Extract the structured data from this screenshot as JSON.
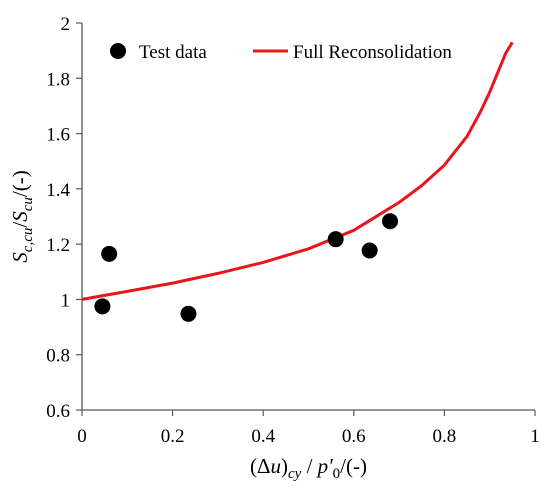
{
  "chart_data": {
    "type": "scatter",
    "title": "",
    "xlabel": {
      "base": "(Δ",
      "var": "u",
      "sub": "cy",
      "rest": " / ",
      "var2": "p'",
      "sub2": "0",
      "tail": "/(-)"
    },
    "ylabel": {
      "var": "S",
      "sub": "c,cu",
      "mid": "/",
      "var2": "S",
      "sub2": "cu",
      "tail": "/(-)"
    },
    "xlim": [
      0,
      1
    ],
    "ylim": [
      0.6,
      2
    ],
    "xticks": [
      "0",
      "0.2",
      "0.4",
      "0.6",
      "0.8",
      "1"
    ],
    "xtick_values": [
      0,
      0.2,
      0.4,
      0.6,
      0.8,
      1
    ],
    "yticks": [
      "0.6",
      "0.8",
      "1",
      "1.2",
      "1.4",
      "1.6",
      "1.8",
      "2"
    ],
    "ytick_values": [
      0.6,
      0.8,
      1,
      1.2,
      1.4,
      1.6,
      1.8,
      2
    ],
    "grid": false,
    "legend_position": "top",
    "series": [
      {
        "name": "Test data",
        "kind": "scatter",
        "color": "#000000",
        "x": [
          0.045,
          0.06,
          0.235,
          0.56,
          0.635,
          0.68
        ],
        "y": [
          0.975,
          1.165,
          0.948,
          1.218,
          1.177,
          1.283
        ]
      },
      {
        "name": "Full Reconsolidation",
        "kind": "line",
        "color": "#e8161b",
        "x": [
          0,
          0.1,
          0.2,
          0.3,
          0.4,
          0.5,
          0.6,
          0.7,
          0.75,
          0.8,
          0.85,
          0.88,
          0.9,
          0.92,
          0.935,
          0.95
        ],
        "y": [
          1.0,
          1.029,
          1.059,
          1.094,
          1.134,
          1.183,
          1.25,
          1.351,
          1.412,
          1.486,
          1.59,
          1.68,
          1.75,
          1.83,
          1.89,
          1.93
        ]
      }
    ]
  }
}
